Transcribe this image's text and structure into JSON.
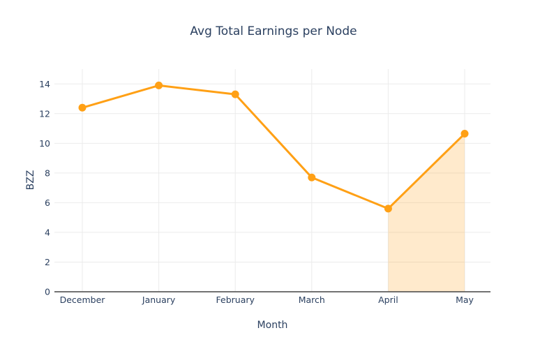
{
  "chart_data": {
    "type": "line",
    "title": "Avg Total Earnings per Node",
    "xlabel": "Month",
    "ylabel": "BZZ",
    "categories": [
      "December",
      "January",
      "February",
      "March",
      "April",
      "May"
    ],
    "values": [
      12.4,
      13.9,
      13.3,
      7.7,
      5.6,
      10.65
    ],
    "ylim": [
      0,
      15
    ],
    "ytick_step": 2,
    "yticks": [
      0,
      2,
      4,
      6,
      8,
      10,
      12,
      14
    ],
    "grid": true,
    "legend": false,
    "fill_region": {
      "from_category": "April",
      "to_category": "May",
      "fill_to": 0
    },
    "colors": {
      "line": "#FFA015",
      "marker": "#FFA015",
      "fill": "rgba(255, 160, 21, 0.22)",
      "grid": "#EBEBEB",
      "axis_line": "#444444",
      "text": "#2A3F5F",
      "background": "#FFFFFF"
    }
  }
}
